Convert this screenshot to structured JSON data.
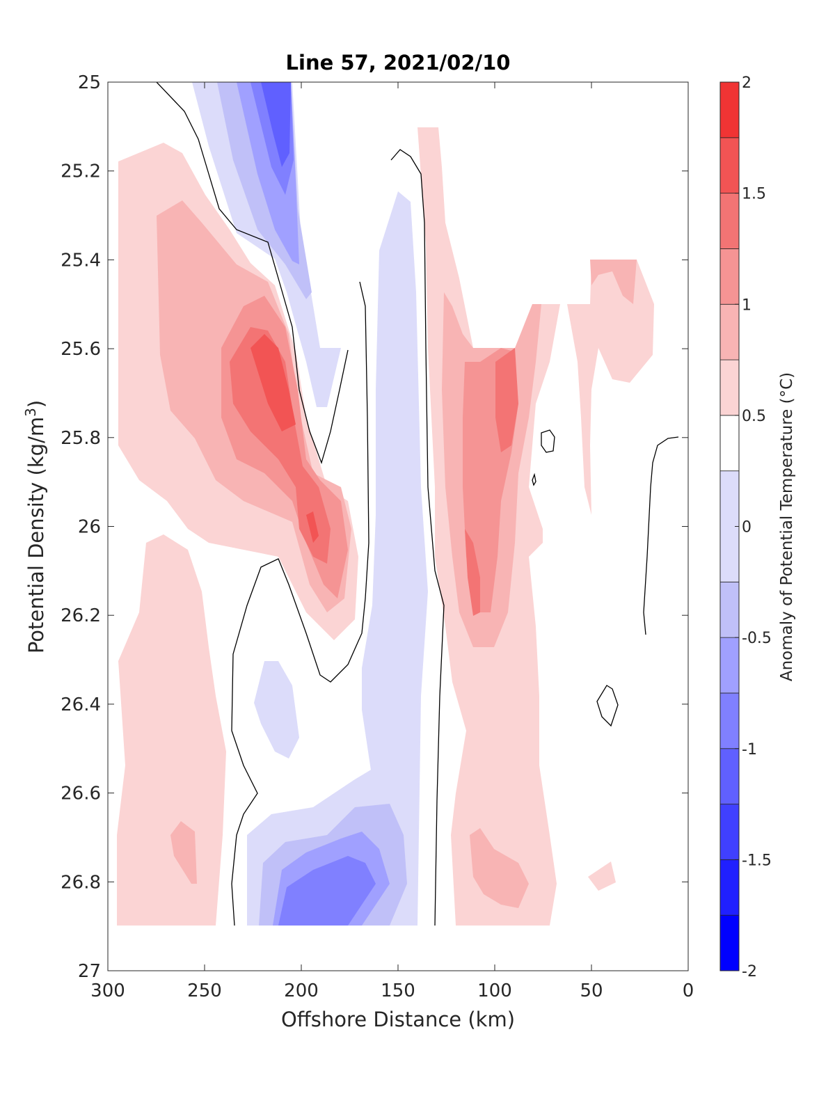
{
  "chart_data": {
    "type": "heatmap",
    "subtype": "filled-contour",
    "title": "Line 57, 2021/02/10",
    "xlabel": "Offshore Distance (km)",
    "ylabel_prefix": "Potential Density (kg/m",
    "ylabel_superscript": "3",
    "ylabel_suffix": ")",
    "colorbar_label": "Anomaly of Potential Temperature (°C)",
    "xlim": [
      300,
      0
    ],
    "x_reversed": true,
    "ylim": [
      25,
      27
    ],
    "y_reversed": true,
    "x_ticks": [
      "300",
      "250",
      "200",
      "150",
      "100",
      "50",
      "0"
    ],
    "y_ticks": [
      "25",
      "25.2",
      "25.4",
      "25.6",
      "25.8",
      "26",
      "26.2",
      "26.4",
      "26.6",
      "26.8",
      "27"
    ],
    "colorbar_ticks": [
      "2",
      "1.5",
      "1",
      "0.5",
      "0",
      "-0.5",
      "-1",
      "-1.5",
      "-2"
    ],
    "clim": [
      -2,
      2
    ],
    "contour_levels": [
      -2,
      -1.75,
      -1.5,
      -1.25,
      -1,
      -0.75,
      -0.5,
      -0.25,
      0.25,
      0.5,
      0.75,
      1,
      1.25,
      1.5,
      1.75,
      2
    ],
    "level_colors": [
      "#0000ff",
      "#2020ff",
      "#4040ff",
      "#6060ff",
      "#8080ff",
      "#a0a0ff",
      "#c0c0f8",
      "#dcdcfa",
      "#ffffff",
      "#fbd4d4",
      "#f8b4b4",
      "#f59494",
      "#f37474",
      "#f25454",
      "#f03434",
      "#ff0000"
    ],
    "black_contour": "zero anomaly line",
    "features": [
      {
        "name": "positive lens west",
        "x_range": [
          290,
          205
        ],
        "y_range": [
          25.15,
          26.3
        ],
        "max_anomaly": 1.25
      },
      {
        "name": "negative core near surface",
        "x_range": [
          225,
          200
        ],
        "y_range": [
          25.0,
          25.2
        ],
        "min_anomaly": -1.5
      },
      {
        "name": "negative tongue central",
        "x_range": [
          170,
          140
        ],
        "y_range": [
          25.25,
          26.9
        ],
        "min_anomaly": -0.5
      },
      {
        "name": "negative deep core",
        "x_range": [
          230,
          145
        ],
        "y_range": [
          26.65,
          26.9
        ],
        "min_anomaly": -1.0
      },
      {
        "name": "positive band east",
        "x_range": [
          130,
          65
        ],
        "y_range": [
          25.1,
          26.9
        ],
        "max_anomaly": 1.0
      },
      {
        "name": "positive patch far east",
        "x_range": [
          60,
          18
        ],
        "y_range": [
          25.4,
          25.7
        ],
        "max_anomaly": 0.75
      }
    ]
  }
}
